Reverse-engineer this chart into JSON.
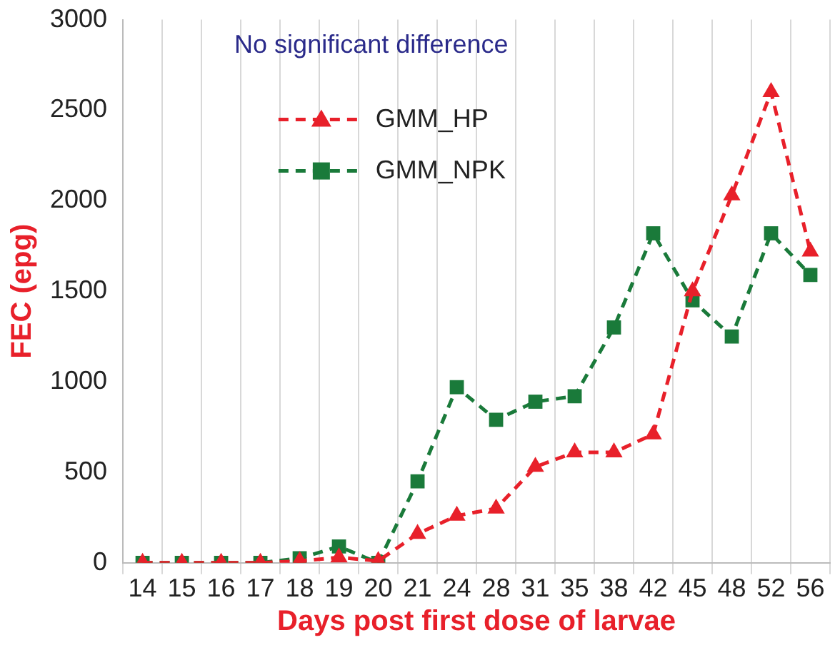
{
  "chart_data": {
    "type": "line",
    "xlabel": "Days post first dose of larvae",
    "ylabel": "FEC (epg)",
    "annotations": [
      "No significant difference"
    ],
    "categories": [
      "14",
      "15",
      "16",
      "17",
      "18",
      "19",
      "20",
      "21",
      "24",
      "28",
      "31",
      "35",
      "38",
      "42",
      "45",
      "48",
      "52",
      "56"
    ],
    "series": [
      {
        "name": "GMM_HP",
        "color": "#e8202a",
        "marker": "triangle",
        "values": [
          0,
          0,
          0,
          0,
          10,
          30,
          10,
          160,
          260,
          300,
          530,
          610,
          610,
          710,
          1500,
          2030,
          2600,
          1720
        ]
      },
      {
        "name": "GMM_NPK",
        "color": "#1a7a3a",
        "marker": "square",
        "values": [
          0,
          0,
          0,
          0,
          25,
          90,
          0,
          450,
          970,
          790,
          890,
          920,
          1300,
          1820,
          1450,
          1250,
          1820,
          1590
        ]
      }
    ],
    "ylim": [
      0,
      3000
    ],
    "yticks": [
      0,
      500,
      1000,
      1500,
      2000,
      2500,
      3000
    ],
    "grid": "x",
    "legend": "top left",
    "line_style": "dashed"
  }
}
